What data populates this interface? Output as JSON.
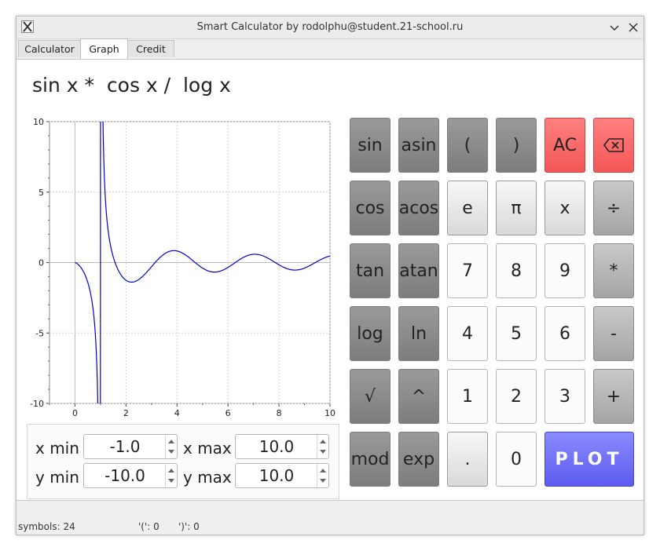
{
  "window": {
    "title": "Smart Calculator by rodolphu@student.21-school.ru"
  },
  "tabs": [
    {
      "label": "Calculator"
    },
    {
      "label": "Graph"
    },
    {
      "label": "Credit"
    }
  ],
  "expression": "sin x *  cos x /  log x",
  "chart_data": {
    "type": "line",
    "function": "sin(x)*cos(x)/log(x)",
    "xlim": [
      -1.0,
      10.0
    ],
    "ylim": [
      -10.0,
      10.0
    ],
    "x_ticks": [
      "0",
      "2",
      "4",
      "6",
      "8",
      "10"
    ],
    "y_ticks": [
      "10",
      "5",
      "0",
      "-5",
      "-10"
    ],
    "grid": true,
    "line_color": "#0000cc"
  },
  "range": {
    "x_min_label": "x min",
    "x_min": "-1.0",
    "x_max_label": "x max",
    "x_max": "10.0",
    "y_min_label": "y min",
    "y_min": "-10.0",
    "y_max_label": "y max",
    "y_max": "10.0"
  },
  "keys": {
    "sin": "sin",
    "asin": "asin",
    "lparen": "(",
    "rparen": ")",
    "ac": "AC",
    "backspace": "⌫",
    "cos": "cos",
    "acos": "acos",
    "e": "e",
    "pi": "π",
    "x": "x",
    "divide": "÷",
    "tan": "tan",
    "atan": "atan",
    "n7": "7",
    "n8": "8",
    "n9": "9",
    "multiply": "*",
    "log": "log",
    "ln": "ln",
    "n4": "4",
    "n5": "5",
    "n6": "6",
    "minus": "-",
    "sqrt": "√",
    "pow": "^",
    "n1": "1",
    "n2": "2",
    "n3": "3",
    "plus": "+",
    "mod": "mod",
    "exp": "exp",
    "dot": ".",
    "n0": "0",
    "plot": "PLOT"
  },
  "status": {
    "symbols": "symbols: 24",
    "open_paren": "'(': 0",
    "close_paren": "')': 0"
  },
  "colors": {
    "accent_plot": "#6a6af5",
    "danger": "#f56262"
  }
}
